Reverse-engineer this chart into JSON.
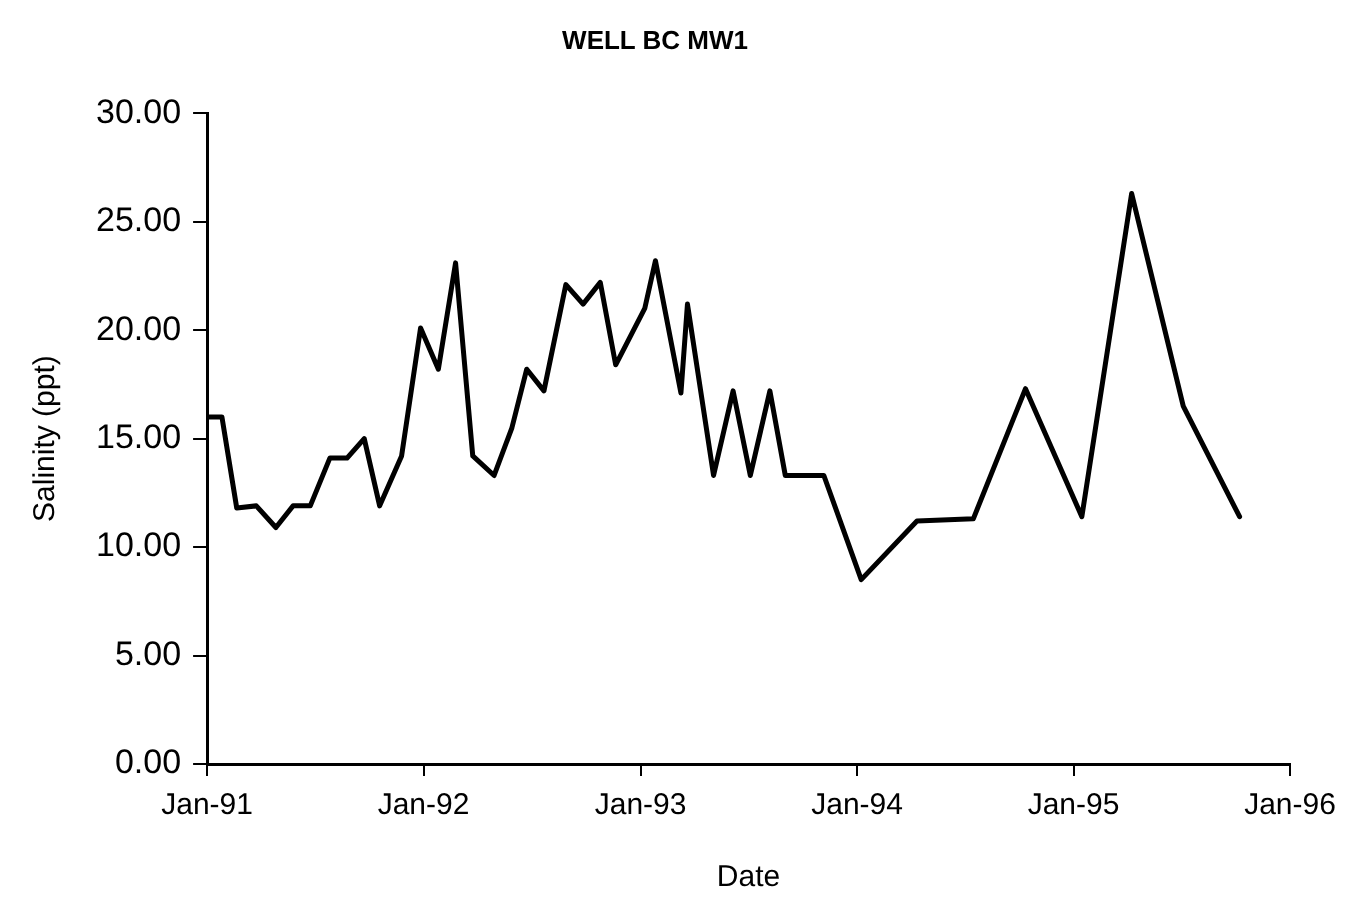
{
  "chart_data": {
    "type": "line",
    "title": "WELL BC MW1",
    "xlabel": "Date",
    "ylabel": "Salinity (ppt)",
    "x": [
      "1991-01-01",
      "1991-01-26",
      "1991-02-20",
      "1991-03-25",
      "1991-04-27",
      "1991-05-26",
      "1991-06-24",
      "1991-07-27",
      "1991-08-25",
      "1991-09-23",
      "1991-10-19",
      "1991-11-25",
      "1991-12-27",
      "1992-01-26",
      "1992-02-24",
      "1992-03-24",
      "1992-04-29",
      "1992-05-29",
      "1992-06-23",
      "1992-07-22",
      "1992-08-28",
      "1992-09-26",
      "1992-10-25",
      "1992-11-20",
      "1993-01-08",
      "1993-01-26",
      "1993-03-10",
      "1993-03-21",
      "1993-05-04",
      "1993-06-06",
      "1993-07-05",
      "1993-08-07",
      "1993-09-02",
      "1993-11-06",
      "1994-01-08",
      "1994-04-12",
      "1994-07-16",
      "1994-10-12",
      "1995-01-15",
      "1995-04-09",
      "1995-07-05",
      "1995-10-08"
    ],
    "series": [
      {
        "color": "#000000",
        "values": [
          16.0,
          16.0,
          11.8,
          11.9,
          10.9,
          11.9,
          11.9,
          14.1,
          14.1,
          15.0,
          11.9,
          14.2,
          20.1,
          18.2,
          23.1,
          14.2,
          13.3,
          15.5,
          18.2,
          17.2,
          22.1,
          21.2,
          22.2,
          18.4,
          21.0,
          23.2,
          17.1,
          21.2,
          13.3,
          17.2,
          13.3,
          17.2,
          13.3,
          13.3,
          8.5,
          11.2,
          11.3,
          17.3,
          11.4,
          26.3,
          16.5,
          11.4
        ]
      }
    ],
    "xlim": [
      "1991-01-01",
      "1996-01-01"
    ],
    "xticks": [
      {
        "value": "1991-01-01",
        "label": "Jan-91"
      },
      {
        "value": "1992-01-01",
        "label": "Jan-92"
      },
      {
        "value": "1993-01-01",
        "label": "Jan-93"
      },
      {
        "value": "1994-01-01",
        "label": "Jan-94"
      },
      {
        "value": "1995-01-01",
        "label": "Jan-95"
      },
      {
        "value": "1996-01-01",
        "label": "Jan-96"
      }
    ],
    "ylim": [
      0,
      30
    ],
    "yticks": [
      {
        "value": 0,
        "label": "0.00"
      },
      {
        "value": 5,
        "label": "5.00"
      },
      {
        "value": 10,
        "label": "10.00"
      },
      {
        "value": 15,
        "label": "15.00"
      },
      {
        "value": 20,
        "label": "20.00"
      },
      {
        "value": 25,
        "label": "25.00"
      },
      {
        "value": 30,
        "label": "30.00"
      }
    ],
    "grid": false,
    "legend": false,
    "marker": "none",
    "line_style": "solid"
  }
}
